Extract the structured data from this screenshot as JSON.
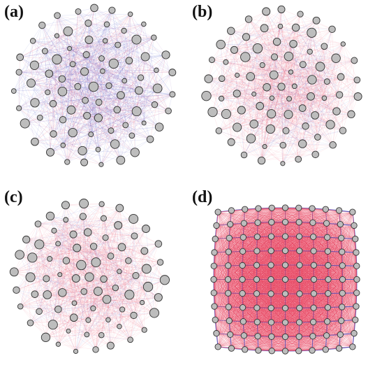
{
  "panels": [
    {
      "id": "a",
      "label": "(a)",
      "node_size": "varied",
      "edge_tint": "purple"
    },
    {
      "id": "b",
      "label": "(b)",
      "node_size": "varied",
      "edge_tint": "red"
    },
    {
      "id": "c",
      "label": "(c)",
      "node_size": "varied",
      "edge_tint": "red"
    },
    {
      "id": "d",
      "label": "(d)",
      "node_size": "uniform",
      "edge_tint": "red-grid"
    }
  ],
  "colors": {
    "node_fill": "#bdbdbd",
    "node_stroke": "#333333",
    "edge_red": "#e8415f",
    "edge_blue": "#3f4fc4",
    "edge_purple": "#8a4fb0",
    "background": "#ffffff"
  }
}
